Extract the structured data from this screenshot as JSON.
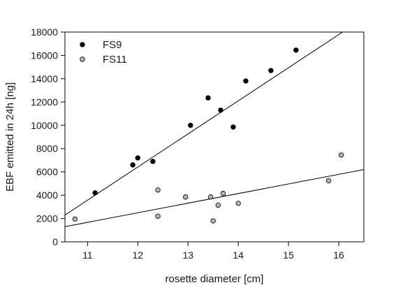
{
  "chart_data": {
    "type": "scatter",
    "title": "",
    "xlabel": "rosette diameter [cm]",
    "ylabel": "EBF emitted in 24h [ng]",
    "xlim": [
      10.55,
      16.5
    ],
    "ylim": [
      0,
      18000
    ],
    "xticks": [
      11,
      12,
      13,
      14,
      15,
      16
    ],
    "yticks": [
      0,
      2000,
      4000,
      6000,
      8000,
      10000,
      12000,
      14000,
      16000,
      18000
    ],
    "grid": false,
    "legend_position": "top-left",
    "series": [
      {
        "name": "FS9",
        "marker_color": "#000000",
        "x": [
          11.15,
          11.9,
          12.0,
          12.3,
          13.05,
          13.4,
          13.65,
          13.9,
          14.15,
          14.65,
          15.15
        ],
        "y": [
          4200,
          6600,
          7200,
          6900,
          10000,
          12350,
          11300,
          9850,
          13800,
          14700,
          16450
        ],
        "fit": {
          "x": [
            10.55,
            16.5
          ],
          "y": [
            2300,
            19200
          ]
        }
      },
      {
        "name": "FS11",
        "marker_color": "#b4b4b4",
        "x": [
          10.75,
          12.4,
          12.4,
          12.95,
          13.45,
          13.5,
          13.6,
          13.7,
          14.0,
          15.8,
          16.05
        ],
        "y": [
          1950,
          4450,
          2200,
          3850,
          3850,
          1800,
          3150,
          4150,
          3300,
          5250,
          7450
        ],
        "fit": {
          "x": [
            10.55,
            16.5
          ],
          "y": [
            1300,
            6200
          ]
        }
      }
    ]
  }
}
